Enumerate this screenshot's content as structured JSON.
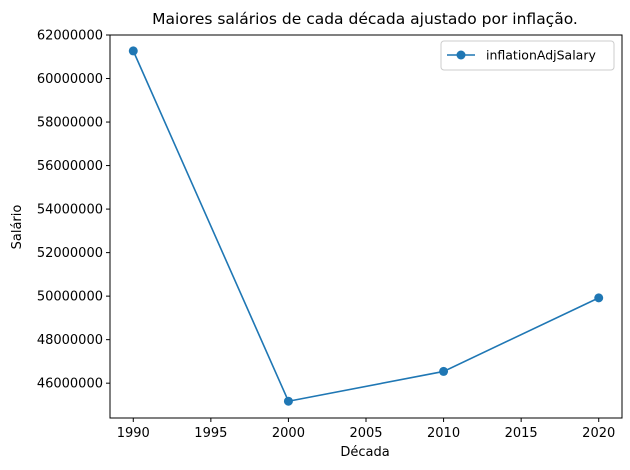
{
  "chart_data": {
    "type": "line",
    "title": "Maiores salários de cada década ajustado por inflação.",
    "xlabel": "Década",
    "ylabel": "Salário",
    "x": [
      1990,
      2000,
      2010,
      2020
    ],
    "series": [
      {
        "name": "inflationAdjSalary",
        "color": "#1f77b4",
        "marker": "circle",
        "values": [
          61270000,
          45170000,
          46540000,
          49920000
        ]
      }
    ],
    "xlim": [
      1988.5,
      2021.5
    ],
    "ylim": [
      44400000,
      62000000
    ],
    "xticks": [
      1990,
      1995,
      2000,
      2005,
      2010,
      2015,
      2020
    ],
    "yticks": [
      46000000,
      48000000,
      50000000,
      52000000,
      54000000,
      56000000,
      58000000,
      60000000,
      62000000
    ],
    "xtick_labels": [
      "1990",
      "1995",
      "2000",
      "2005",
      "2010",
      "2015",
      "2020"
    ],
    "ytick_labels": [
      "46000000",
      "48000000",
      "50000000",
      "52000000",
      "54000000",
      "56000000",
      "58000000",
      "60000000",
      "62000000"
    ],
    "grid": false,
    "legend": "top-right"
  }
}
